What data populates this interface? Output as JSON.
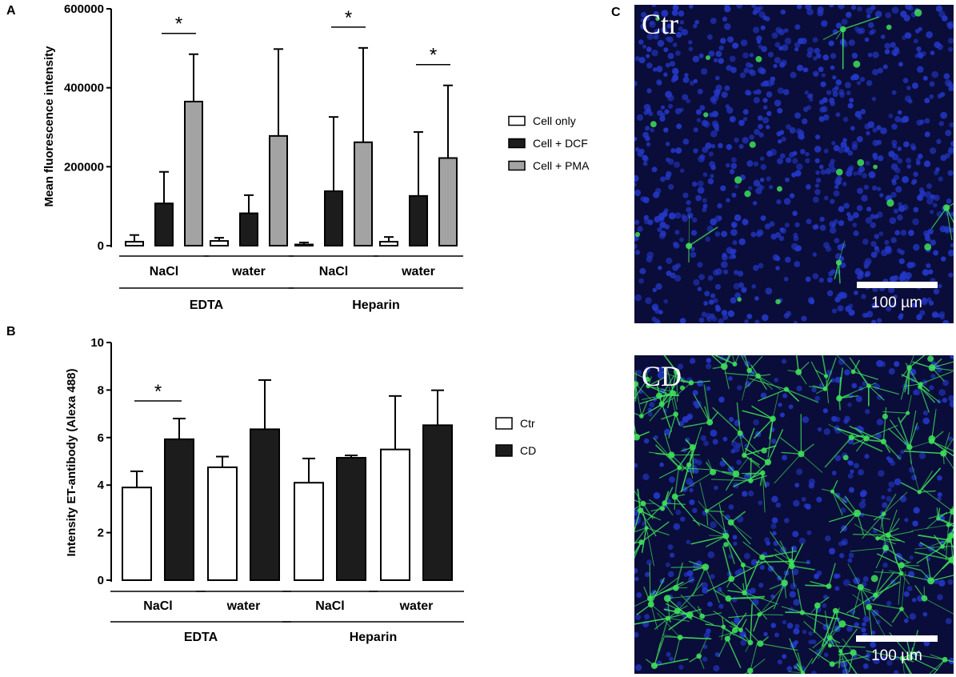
{
  "panel_letters": {
    "a": "A",
    "b": "B",
    "c": "C"
  },
  "chart_data": [
    {
      "type": "bar",
      "panel": "A",
      "ylabel": "Mean fluorescence intensity",
      "ylim": [
        0,
        600000
      ],
      "yticks": [
        0,
        200000,
        400000,
        600000
      ],
      "ytick_labels": [
        "0",
        "200000",
        "400000",
        "600000"
      ],
      "categories": [
        "NaCl",
        "water",
        "NaCl",
        "water"
      ],
      "groups": [
        {
          "label": "EDTA",
          "categories": [
            0,
            1
          ]
        },
        {
          "label": "Heparin",
          "categories": [
            2,
            3
          ]
        }
      ],
      "series": [
        {
          "name": "Cell only",
          "color": "#ffffff",
          "values": [
            10000,
            12000,
            3000,
            10000
          ],
          "errors": [
            17000,
            8000,
            5000,
            12000
          ]
        },
        {
          "name": "Cell + DCF",
          "color": "#1c1c1c",
          "values": [
            107000,
            82000,
            138000,
            126000
          ],
          "errors": [
            80000,
            46000,
            188000,
            162000
          ]
        },
        {
          "name": "Cell + PMA",
          "color": "#a3a3a3",
          "values": [
            365000,
            278000,
            262000,
            222000
          ],
          "errors": [
            120000,
            220000,
            239000,
            184000
          ]
        }
      ],
      "significance": [
        {
          "category": 0,
          "between": [
            1,
            2
          ],
          "label": "*"
        },
        {
          "category": 2,
          "between": [
            1,
            2
          ],
          "label": "*"
        },
        {
          "category": 3,
          "between": [
            1,
            2
          ],
          "label": "*"
        }
      ],
      "legend_position": "right"
    },
    {
      "type": "bar",
      "panel": "B",
      "ylabel": "Intensity ET-antibody (Alexa 488)",
      "ylim": [
        0,
        10
      ],
      "yticks": [
        0,
        2,
        4,
        6,
        8,
        10
      ],
      "ytick_labels": [
        "0",
        "2",
        "4",
        "6",
        "8",
        "10"
      ],
      "categories": [
        "NaCl",
        "water",
        "NaCl",
        "water"
      ],
      "groups": [
        {
          "label": "EDTA",
          "categories": [
            0,
            1
          ]
        },
        {
          "label": "Heparin",
          "categories": [
            2,
            3
          ]
        }
      ],
      "series": [
        {
          "name": "Ctr",
          "color": "#ffffff",
          "values": [
            3.9,
            4.75,
            4.1,
            5.5
          ],
          "errors": [
            0.68,
            0.45,
            1.02,
            2.25
          ]
        },
        {
          "name": "CD",
          "color": "#1c1c1c",
          "values": [
            5.93,
            6.35,
            5.15,
            6.52
          ],
          "errors": [
            0.87,
            2.07,
            0.1,
            1.47
          ]
        }
      ],
      "significance": [
        {
          "category": 0,
          "between": [
            0,
            1
          ],
          "label": "*"
        }
      ],
      "legend_position": "right"
    }
  ],
  "micrographs": {
    "top": {
      "label": "Ctr",
      "scale_bar": "100 µm",
      "background": "#0a0d3a",
      "nucleus_color": "#2438c8",
      "fiber_color": "#3ee05a"
    },
    "bottom": {
      "label": "CD",
      "scale_bar": "100 µm",
      "background": "#0a0d3a",
      "nucleus_color": "#2438c8",
      "fiber_color": "#3ee05a"
    }
  }
}
